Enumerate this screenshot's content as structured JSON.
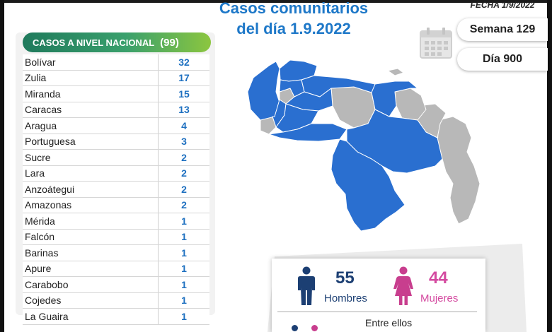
{
  "header": {
    "title_line1": "Casos comunitarios",
    "title_line2": "del día 1.9.2022",
    "fecha": "FECHA 1/9/2022",
    "semana": "Semana 129",
    "dia": "Día 900"
  },
  "table": {
    "title": "CASOS A NIVEL NACIONAL",
    "total": "(99)",
    "rows": [
      {
        "state": "Bolívar",
        "count": "32"
      },
      {
        "state": "Zulia",
        "count": "17"
      },
      {
        "state": "Miranda",
        "count": "15"
      },
      {
        "state": "Caracas",
        "count": "13"
      },
      {
        "state": "Aragua",
        "count": "4"
      },
      {
        "state": "Portuguesa",
        "count": "3"
      },
      {
        "state": "Sucre",
        "count": "2"
      },
      {
        "state": "Lara",
        "count": "2"
      },
      {
        "state": "Anzoátegui",
        "count": "2"
      },
      {
        "state": "Amazonas",
        "count": "2"
      },
      {
        "state": "Mérida",
        "count": "1"
      },
      {
        "state": "Falcón",
        "count": "1"
      },
      {
        "state": "Barinas",
        "count": "1"
      },
      {
        "state": "Apure",
        "count": "1"
      },
      {
        "state": "Carabobo",
        "count": "1"
      },
      {
        "state": "Cojedes",
        "count": "1"
      },
      {
        "state": "La Guaira",
        "count": "1"
      }
    ]
  },
  "gender": {
    "men_count": "55",
    "men_label": "Hombres",
    "women_count": "44",
    "women_label": "Mujeres",
    "entre_ellos": "Entre ellos"
  },
  "colors": {
    "title_blue": "#1e78c8",
    "count_blue": "#1e70c0",
    "map_blue": "#2a6fd0",
    "map_gray": "#b8b8b8",
    "men_icon": "#1c3f73",
    "women_icon": "#c83e8e",
    "women_text": "#d44aa0",
    "header_green": "#3aa06c"
  },
  "icons": {
    "calendar": "calendar-icon",
    "man": "man-icon",
    "woman": "woman-icon"
  }
}
